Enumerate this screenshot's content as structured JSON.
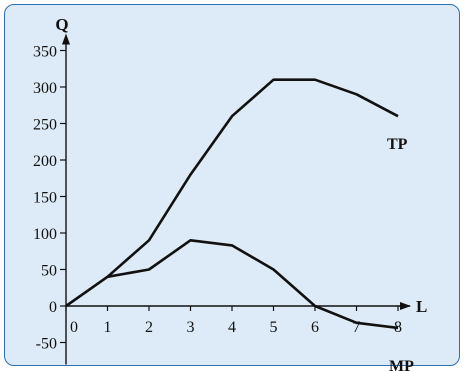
{
  "chart_data": {
    "type": "line",
    "title": "",
    "xlabel": "L",
    "ylabel": "Q",
    "xlim": [
      0,
      8
    ],
    "ylim": [
      -50,
      350
    ],
    "x_ticks": [
      0,
      1,
      2,
      3,
      4,
      5,
      6,
      7,
      8
    ],
    "y_ticks": [
      -50,
      0,
      50,
      100,
      150,
      200,
      250,
      300,
      350
    ],
    "grid": false,
    "legend": "none",
    "series": [
      {
        "name": "TP",
        "points": [
          [
            0,
            0
          ],
          [
            1,
            40
          ],
          [
            2,
            90
          ],
          [
            3,
            180
          ],
          [
            4,
            260
          ],
          [
            5,
            310
          ],
          [
            6,
            310
          ],
          [
            7,
            290
          ],
          [
            8,
            260
          ]
        ]
      },
      {
        "name": "MP",
        "points": [
          [
            1,
            40
          ],
          [
            2,
            50
          ],
          [
            3,
            90
          ],
          [
            4,
            83
          ],
          [
            5,
            50
          ],
          [
            6,
            0
          ],
          [
            7,
            -23
          ],
          [
            8,
            -30
          ]
        ]
      }
    ]
  }
}
